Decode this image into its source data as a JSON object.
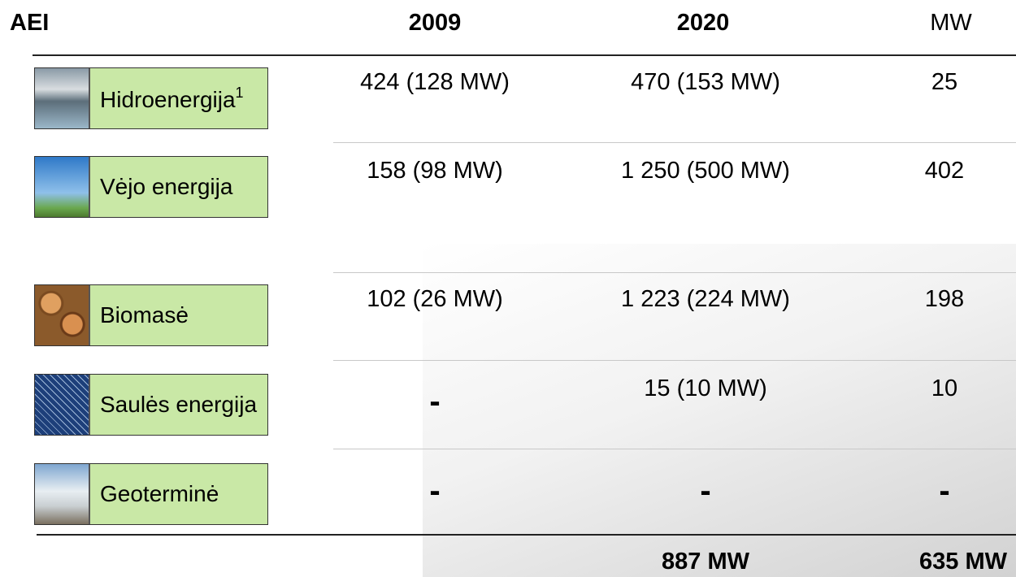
{
  "header": {
    "col0": "AEI",
    "col1": "2009",
    "col2": "2020",
    "col3": "MW"
  },
  "table": {
    "rows": [
      {
        "label": "Hidroenergija",
        "footnote": "1",
        "v2009": "424 (128 MW)",
        "v2020": "470 (153 MW)",
        "mw": "25"
      },
      {
        "label": "Vėjo energija",
        "v2009": "158 (98 MW)",
        "v2020": "1 250 (500 MW)",
        "mw": "402"
      },
      {
        "label": "Biomasė",
        "v2009": "102 (26 MW)",
        "v2020": "1 223 (224 MW)",
        "mw": "198"
      },
      {
        "label": "Saulės energija",
        "v2009": "-",
        "v2020": "15 (10 MW)",
        "mw": "10"
      },
      {
        "label": "Geoterminė",
        "v2009": "-",
        "v2020": "-",
        "mw": "-"
      }
    ]
  },
  "totals": {
    "v2020": "887 MW",
    "mw": "635 MW"
  }
}
